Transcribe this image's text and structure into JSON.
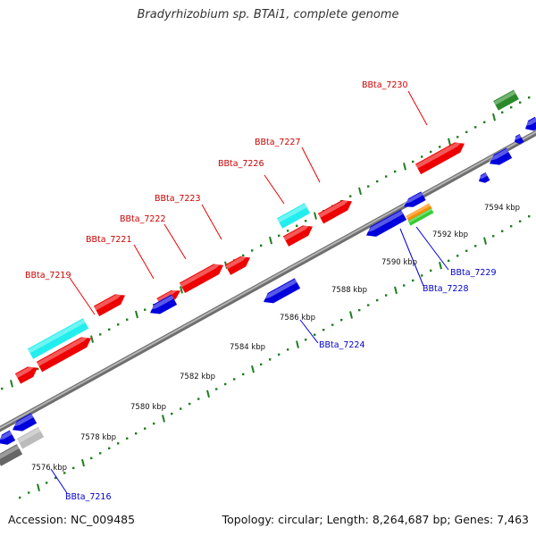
{
  "title": "Bradyrhizobium sp. BTAi1, complete genome",
  "footer": {
    "accession": "Accession: NC_009485",
    "summary": "Topology: circular; Length: 8,264,687 bp; Genes: 7,463"
  },
  "colors": {
    "forward_gene": "#ee0000",
    "reverse_gene": "#0000dd",
    "highlight_gene": "#22eeee",
    "forward_label": "#cc0000",
    "reverse_label": "#0000cc",
    "tick": "#1e7e1e",
    "backbone": "#888888"
  },
  "scale_labels": [
    "7576 kbp",
    "7578 kbp",
    "7580 kbp",
    "7582 kbp",
    "7584 kbp",
    "7586 kbp",
    "7588 kbp",
    "7590 kbp",
    "7592 kbp",
    "7594 kbp"
  ],
  "gene_labels": [
    {
      "name": "BBta_7216",
      "strand": "reverse"
    },
    {
      "name": "BBta_7219",
      "strand": "forward"
    },
    {
      "name": "BBta_7221",
      "strand": "forward"
    },
    {
      "name": "BBta_7222",
      "strand": "forward"
    },
    {
      "name": "BBta_7223",
      "strand": "forward"
    },
    {
      "name": "BBta_7224",
      "strand": "reverse"
    },
    {
      "name": "BBta_7226",
      "strand": "forward"
    },
    {
      "name": "BBta_7227",
      "strand": "forward"
    },
    {
      "name": "BBta_7228",
      "strand": "reverse"
    },
    {
      "name": "BBta_7229",
      "strand": "reverse"
    },
    {
      "name": "BBta_7230",
      "strand": "forward"
    }
  ]
}
